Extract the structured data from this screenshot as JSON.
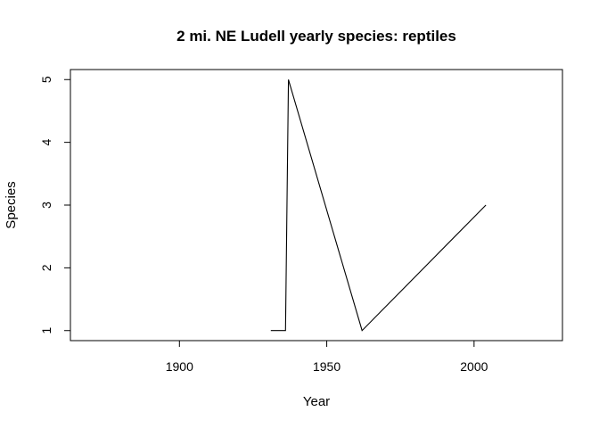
{
  "chart_data": {
    "type": "line",
    "title": "2 mi. NE Ludell yearly species: reptiles",
    "xlabel": "Year",
    "ylabel": "Species",
    "xlim": [
      1863,
      2030
    ],
    "ylim": [
      0.84,
      5.16
    ],
    "xticks": [
      1900,
      1950,
      2000
    ],
    "yticks": [
      1,
      2,
      3,
      4,
      5
    ],
    "grid": false,
    "series": [
      {
        "x": [
          1931,
          1936,
          1937,
          1962,
          2004
        ],
        "y": [
          1,
          1,
          5,
          1,
          3
        ]
      }
    ]
  }
}
